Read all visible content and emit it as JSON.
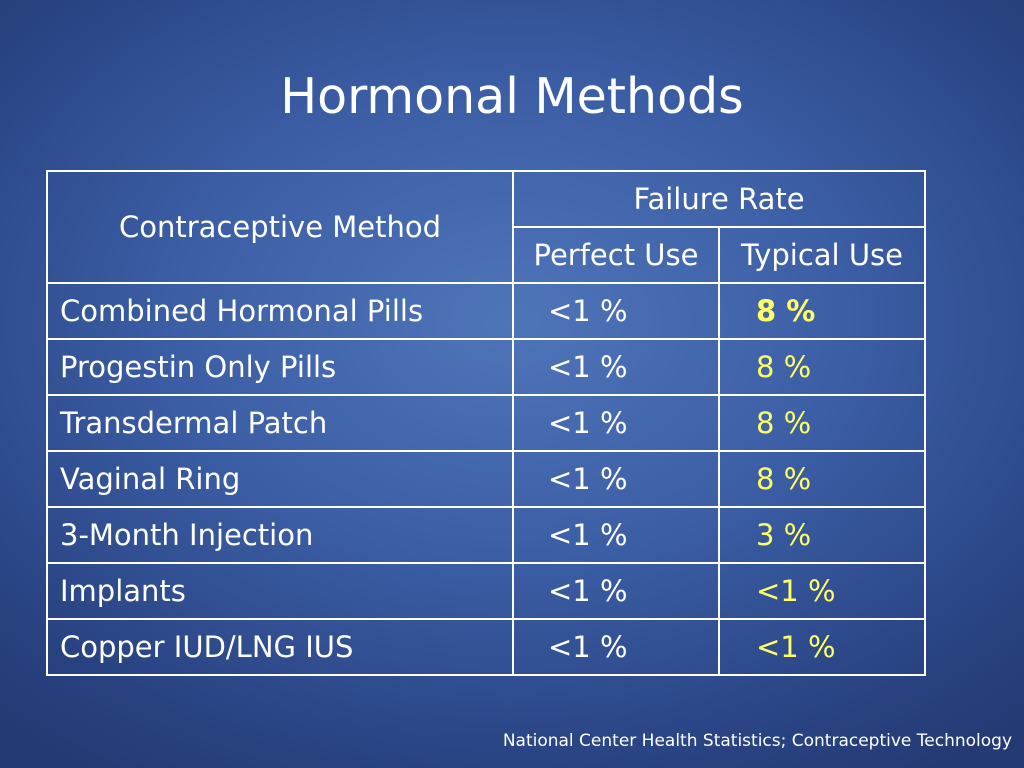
{
  "slide": {
    "title": "Hormonal Methods",
    "source": "National Center Health Statistics; Contraceptive Technology"
  },
  "table": {
    "header": {
      "method": "Contraceptive Method",
      "failure_rate": "Failure Rate",
      "perfect_use": "Perfect Use",
      "typical_use": "Typical Use"
    },
    "rows": [
      {
        "method": "Combined Hormonal Pills",
        "perfect": "<1 %",
        "typical": "8 %",
        "typical_bold": true
      },
      {
        "method": "Progestin Only Pills",
        "perfect": "<1 %",
        "typical": "8 %",
        "typical_bold": false
      },
      {
        "method": "Transdermal Patch",
        "perfect": "<1 %",
        "typical": "8 %",
        "typical_bold": false
      },
      {
        "method": "Vaginal Ring",
        "perfect": "<1 %",
        "typical": "8 %",
        "typical_bold": false
      },
      {
        "method": "3-Month Injection",
        "perfect": "<1 %",
        "typical": "3 %",
        "typical_bold": false
      },
      {
        "method": "Implants",
        "perfect": "<1 %",
        "typical": "<1 %",
        "typical_bold": false
      },
      {
        "method": "Copper IUD/LNG IUS",
        "perfect": "<1 %",
        "typical": "<1 %",
        "typical_bold": false
      }
    ]
  },
  "colors": {
    "background": "#3b5da4",
    "text": "#ffffff",
    "typical_use_value": "#ffff66",
    "border": "#ffffff"
  }
}
